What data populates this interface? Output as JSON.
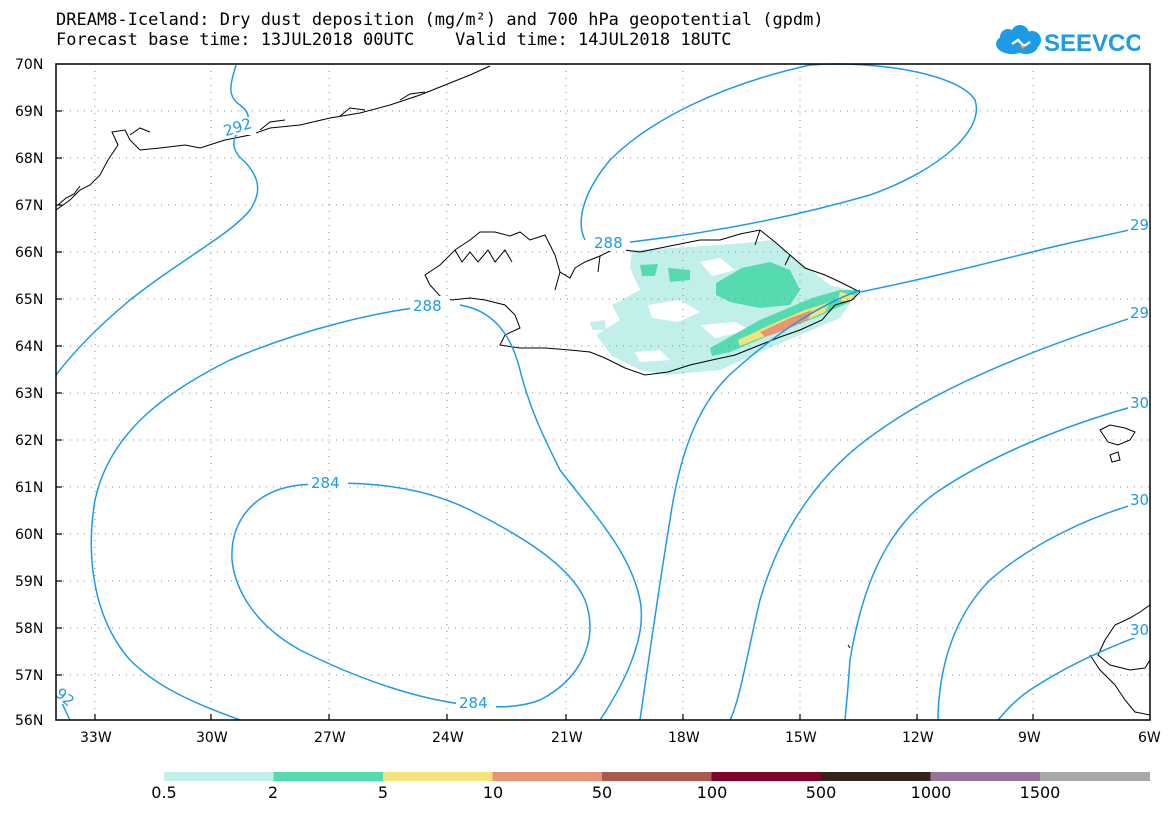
{
  "header": {
    "title_line1": "DREAM8-Iceland: Dry dust deposition (mg/m²) and 700 hPa geopotential (gpdm)",
    "title_line2": "Forecast base time: 13JUL2018 00UTC    Valid time: 14JUL2018 18UTC",
    "logo_text": "SEEVCCC"
  },
  "map": {
    "lat_labels": [
      "70N",
      "69N",
      "68N",
      "67N",
      "66N",
      "65N",
      "64N",
      "63N",
      "62N",
      "61N",
      "60N",
      "59N",
      "58N",
      "57N",
      "56N"
    ],
    "lon_labels": [
      "33W",
      "30W",
      "27W",
      "24W",
      "21W",
      "18W",
      "15W",
      "12W",
      "9W",
      "6W"
    ],
    "contour_labels": [
      "292",
      "288",
      "288",
      "284",
      "284",
      "92",
      "29",
      "29",
      "30",
      "30",
      "30"
    ],
    "contour_color": "#1e9be6",
    "coast_color": "#000000"
  },
  "legend": {
    "labels": [
      "0.5",
      "2",
      "5",
      "10",
      "50",
      "100",
      "500",
      "1000",
      "1500"
    ],
    "colors": [
      "#c1f0ea",
      "#56dbb1",
      "#f5e37a",
      "#e99574",
      "#a85a4f",
      "#7e0628",
      "#352218",
      "#94739c",
      "#a8a8a8"
    ]
  }
}
